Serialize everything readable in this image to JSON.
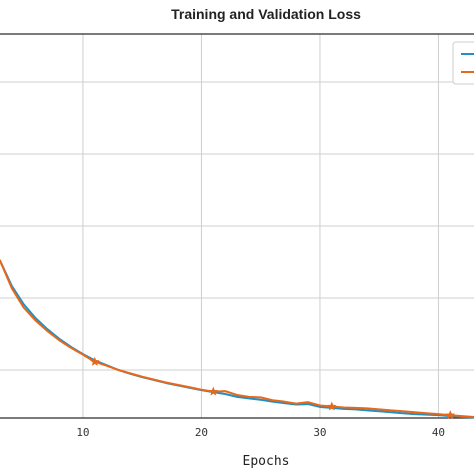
{
  "chart_data": {
    "type": "line",
    "title": "Training and Validation Loss",
    "xlabel": "Epochs",
    "ylabel": "",
    "xlim": [
      3,
      43
    ],
    "ylim": [
      0.2,
      1.0
    ],
    "xticks": [
      10,
      20,
      30,
      40
    ],
    "yticks": [
      0.3,
      0.45,
      0.6,
      0.75,
      0.9
    ],
    "grid": true,
    "legend_position": "top-right",
    "series": [
      {
        "color": "#1f8fc4",
        "marker": "none",
        "x": [
          3,
          4,
          5,
          6,
          7,
          8,
          9,
          10,
          11,
          12,
          13,
          14,
          15,
          16,
          17,
          18,
          19,
          20,
          21,
          22,
          23,
          24,
          25,
          26,
          27,
          28,
          29,
          30,
          31,
          32,
          33,
          34,
          35,
          36,
          37,
          38,
          39,
          40,
          41,
          42,
          43
        ],
        "values": [
          0.528,
          0.475,
          0.437,
          0.408,
          0.385,
          0.365,
          0.348,
          0.333,
          0.32,
          0.31,
          0.3,
          0.292,
          0.285,
          0.279,
          0.273,
          0.268,
          0.263,
          0.258,
          0.254,
          0.25,
          0.244,
          0.241,
          0.238,
          0.234,
          0.231,
          0.228,
          0.229,
          0.223,
          0.221,
          0.219,
          0.218,
          0.216,
          0.214,
          0.212,
          0.21,
          0.208,
          0.207,
          0.206,
          0.204,
          0.202,
          0.201
        ]
      },
      {
        "color": "#e8681a",
        "marker": "star",
        "marker_x": [
          11,
          21,
          31,
          41
        ],
        "x": [
          3,
          4,
          5,
          6,
          7,
          8,
          9,
          10,
          11,
          12,
          13,
          14,
          15,
          16,
          17,
          18,
          19,
          20,
          21,
          22,
          23,
          24,
          25,
          26,
          27,
          28,
          29,
          30,
          31,
          32,
          33,
          34,
          35,
          36,
          37,
          38,
          39,
          40,
          41,
          42,
          43
        ],
        "values": [
          0.528,
          0.47,
          0.43,
          0.403,
          0.381,
          0.362,
          0.346,
          0.332,
          0.317,
          0.309,
          0.3,
          0.293,
          0.286,
          0.28,
          0.274,
          0.269,
          0.264,
          0.259,
          0.255,
          0.256,
          0.248,
          0.244,
          0.243,
          0.237,
          0.234,
          0.23,
          0.233,
          0.226,
          0.224,
          0.222,
          0.221,
          0.22,
          0.218,
          0.216,
          0.214,
          0.212,
          0.21,
          0.208,
          0.206,
          0.204,
          0.202
        ]
      }
    ]
  }
}
